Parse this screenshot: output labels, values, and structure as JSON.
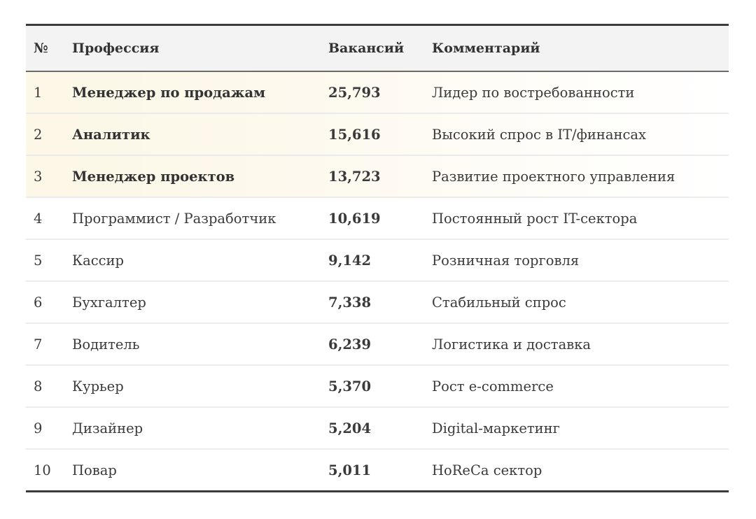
{
  "table": {
    "headers": {
      "num": "№",
      "profession": "Профессия",
      "vacancies": "Вакансий",
      "comment": "Комментарий"
    },
    "rows": [
      {
        "num": "1",
        "profession": "Менеджер по продажам",
        "vacancies": "25,793",
        "comment": "Лидер по востребованности",
        "highlighted": true
      },
      {
        "num": "2",
        "profession": "Аналитик",
        "vacancies": "15,616",
        "comment": "Высокий спрос в IT/финансах",
        "highlighted": true
      },
      {
        "num": "3",
        "profession": "Менеджер проектов",
        "vacancies": "13,723",
        "comment": "Развитие проектного управления",
        "highlighted": true
      },
      {
        "num": "4",
        "profession": "Программист / Разработчик",
        "vacancies": "10,619",
        "comment": "Постоянный рост IT-сектора",
        "highlighted": false
      },
      {
        "num": "5",
        "profession": "Кассир",
        "vacancies": "9,142",
        "comment": "Розничная торговля",
        "highlighted": false
      },
      {
        "num": "6",
        "profession": "Бухгалтер",
        "vacancies": "7,338",
        "comment": "Стабильный спрос",
        "highlighted": false
      },
      {
        "num": "7",
        "profession": "Водитель",
        "vacancies": "6,239",
        "comment": "Логистика и доставка",
        "highlighted": false
      },
      {
        "num": "8",
        "profession": "Курьер",
        "vacancies": "5,370",
        "comment": "Рост e-commerce",
        "highlighted": false
      },
      {
        "num": "9",
        "profession": "Дизайнер",
        "vacancies": "5,204",
        "comment": "Digital-маркетинг",
        "highlighted": false
      },
      {
        "num": "10",
        "profession": "Повар",
        "vacancies": "5,011",
        "comment": "HoReCa сектор",
        "highlighted": false
      }
    ]
  },
  "colors": {
    "highlight_start": "#fcf7e6",
    "header_bg": "#f3f3f3",
    "border_dark": "#3a3a3a",
    "row_separator": "#ebebeb",
    "text": "#333333"
  }
}
